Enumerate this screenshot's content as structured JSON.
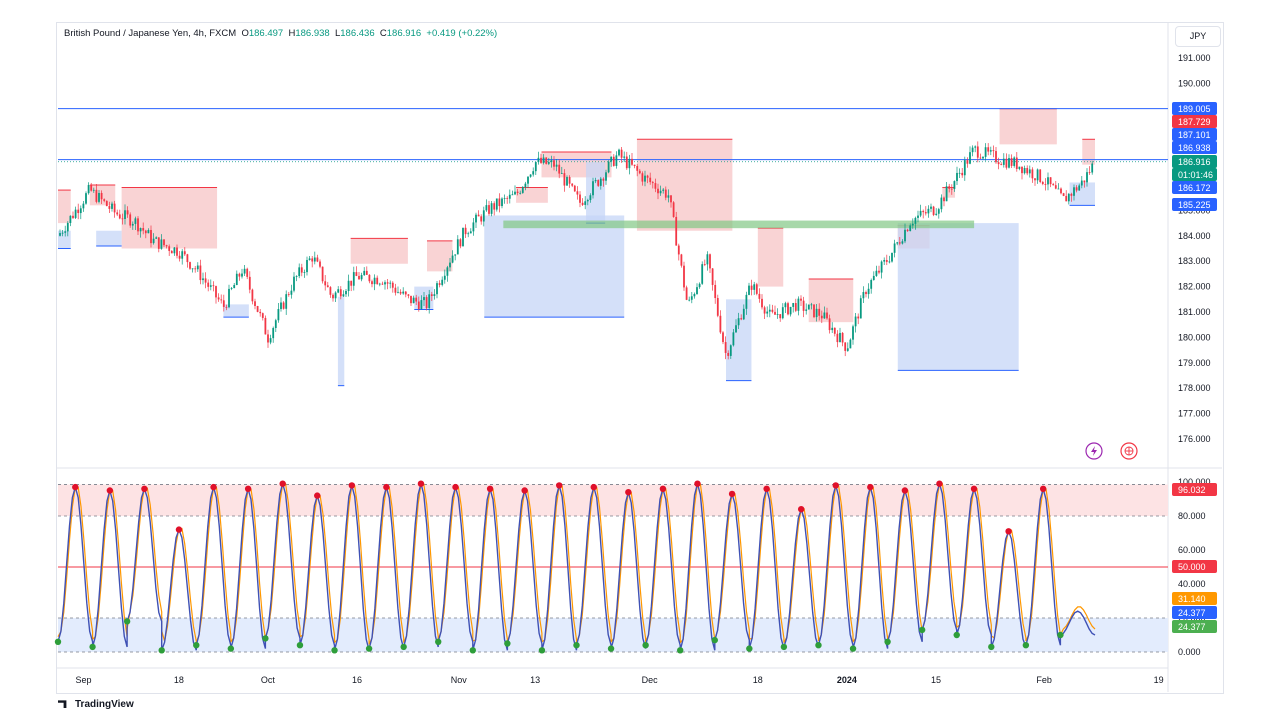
{
  "header": {
    "symbol": "British Pound / Japanese Yen, 4h, FXCM",
    "open_label": "O",
    "open": "186.497",
    "high_label": "H",
    "high": "186.938",
    "low_label": "L",
    "low": "186.436",
    "close_label": "C",
    "close": "186.916",
    "change": "+0.419 (+0.22%)"
  },
  "currency_button": "JPY",
  "branding": "TradingView",
  "colors": {
    "up": "#089981",
    "down": "#f23645",
    "blue": "#2962ff",
    "supply_zone": "#f7c4c6",
    "demand_zone": "#c5d6f7",
    "k_line": "#3f51b5",
    "d_line": "#ff9800"
  },
  "chart_data": [
    {
      "type": "candlestick",
      "title": "British Pound / Japanese Yen, 4h, FXCM",
      "ylim": [
        175.5,
        191.6
      ],
      "y_ticks": [
        "191.000",
        "190.000",
        "189.000",
        "188.000",
        "187.000",
        "186.000",
        "185.000",
        "184.000",
        "183.000",
        "182.000",
        "181.000",
        "180.000",
        "179.000",
        "178.000",
        "177.000",
        "176.000"
      ],
      "x_ticks": [
        "Sep",
        "18",
        "Oct",
        "16",
        "Nov",
        "13",
        "Dec",
        "18",
        "2024",
        "15",
        "Feb",
        "19"
      ],
      "close_path": [
        [
          "Aug 30",
          184.0
        ],
        [
          "Sep 4",
          185.8
        ],
        [
          "Sep 8",
          184.9
        ],
        [
          "Sep 11",
          184.6
        ],
        [
          "Sep 14",
          183.8
        ],
        [
          "Sep 18",
          183.4
        ],
        [
          "Sep 21",
          182.6
        ],
        [
          "Sep 25",
          181.2
        ],
        [
          "Sep 28",
          182.7
        ],
        [
          "Oct 2",
          180.0
        ],
        [
          "Oct 6",
          182.2
        ],
        [
          "Oct 9",
          183.2
        ],
        [
          "Oct 12",
          181.6
        ],
        [
          "Oct 16",
          182.4
        ],
        [
          "Oct 20",
          182.3
        ],
        [
          "Oct 24",
          181.5
        ],
        [
          "Oct 27",
          181.3
        ],
        [
          "Oct 30",
          182.8
        ],
        [
          "Nov 2",
          184.2
        ],
        [
          "Nov 6",
          185.1
        ],
        [
          "Nov 10",
          185.6
        ],
        [
          "Nov 13",
          186.9
        ],
        [
          "Nov 16",
          186.8
        ],
        [
          "Nov 20",
          185.3
        ],
        [
          "Nov 23",
          186.2
        ],
        [
          "Nov 26",
          187.2
        ],
        [
          "Nov 30",
          186.3
        ],
        [
          "Dec 4",
          185.6
        ],
        [
          "Dec 7",
          181.2
        ],
        [
          "Dec 10",
          183.1
        ],
        [
          "Dec 13",
          179.3
        ],
        [
          "Dec 17",
          182.1
        ],
        [
          "Dec 20",
          180.8
        ],
        [
          "Dec 24",
          181.3
        ],
        [
          "Dec 28",
          180.9
        ],
        [
          "Jan 1",
          179.6
        ],
        [
          "Jan 4",
          181.9
        ],
        [
          "Jan 8",
          183.3
        ],
        [
          "Jan 11",
          184.6
        ],
        [
          "Jan 15",
          185.1
        ],
        [
          "Jan 18",
          186.2
        ],
        [
          "Jan 21",
          187.4
        ],
        [
          "Jan 24",
          187.1
        ],
        [
          "Jan 28",
          186.8
        ],
        [
          "Feb 1",
          186.2
        ],
        [
          "Feb 4",
          185.4
        ],
        [
          "Feb 7",
          186.1
        ],
        [
          "Feb 9",
          186.916
        ]
      ],
      "price_labels": [
        {
          "value": "189.005",
          "color": "#2962ff"
        },
        {
          "value": "187.729",
          "color": "#f23645"
        },
        {
          "value": "187.101",
          "color": "#2962ff"
        },
        {
          "value": "186.938",
          "color": "#2962ff"
        },
        {
          "value": "186.916",
          "color": "#089981"
        },
        {
          "value": "186.172",
          "color": "#2962ff"
        },
        {
          "value": "185.225",
          "color": "#2962ff"
        }
      ],
      "countdown": "01:01:46",
      "horizontal_lines": [
        189.005,
        187.0
      ],
      "supply_zones": [
        {
          "from": "Aug 30",
          "to": "Sep 1",
          "top": 185.8,
          "bottom": 184.5
        },
        {
          "from": "Sep 4",
          "to": "Sep 8",
          "top": 186.0,
          "bottom": 185.2
        },
        {
          "from": "Sep 9",
          "to": "Sep 24",
          "top": 185.9,
          "bottom": 183.5
        },
        {
          "from": "Oct 15",
          "to": "Oct 24",
          "top": 183.9,
          "bottom": 182.9
        },
        {
          "from": "Oct 27",
          "to": "Oct 31",
          "top": 183.8,
          "bottom": 182.6
        },
        {
          "from": "Nov 10",
          "to": "Nov 15",
          "top": 185.9,
          "bottom": 185.3
        },
        {
          "from": "Nov 14",
          "to": "Nov 25",
          "top": 187.3,
          "bottom": 186.3
        },
        {
          "from": "Nov 29",
          "to": "Dec 14",
          "top": 187.8,
          "bottom": 184.2
        },
        {
          "from": "Dec 18",
          "to": "Dec 22",
          "top": 184.3,
          "bottom": 182.0
        },
        {
          "from": "Dec 26",
          "to": "Jan 2",
          "top": 182.3,
          "bottom": 180.6
        },
        {
          "from": "Jan 9",
          "to": "Jan 14",
          "top": 184.4,
          "bottom": 183.5
        },
        {
          "from": "Jan 16",
          "to": "Jan 18",
          "top": 185.9,
          "bottom": 185.5
        },
        {
          "from": "Jan 25",
          "to": "Feb 3",
          "top": 189.0,
          "bottom": 187.6
        },
        {
          "from": "Feb 7",
          "to": "Feb 9",
          "top": 187.8,
          "bottom": 186.8
        }
      ],
      "demand_zones": [
        {
          "from": "Aug 30",
          "to": "Sep 1",
          "top": 184.2,
          "bottom": 183.5
        },
        {
          "from": "Sep 5",
          "to": "Sep 9",
          "top": 184.2,
          "bottom": 183.6
        },
        {
          "from": "Sep 25",
          "to": "Sep 29",
          "top": 181.3,
          "bottom": 180.8
        },
        {
          "from": "Oct 13",
          "to": "Oct 14",
          "top": 181.6,
          "bottom": 178.1
        },
        {
          "from": "Oct 25",
          "to": "Oct 28",
          "top": 182.0,
          "bottom": 181.1
        },
        {
          "from": "Nov 5",
          "to": "Nov 27",
          "top": 184.8,
          "bottom": 180.8
        },
        {
          "from": "Nov 21",
          "to": "Nov 24",
          "top": 186.9,
          "bottom": 184.5
        },
        {
          "from": "Dec 13",
          "to": "Dec 17",
          "top": 181.5,
          "bottom": 178.3
        },
        {
          "from": "Jan 9",
          "to": "Jan 28",
          "top": 184.5,
          "bottom": 178.7
        },
        {
          "from": "Feb 5",
          "to": "Feb 9",
          "top": 186.1,
          "bottom": 185.2
        }
      ],
      "highlight_band": {
        "from": "Nov 8",
        "to": "Jan 21",
        "top": 184.6,
        "bottom": 184.3
      }
    },
    {
      "type": "line",
      "title": "",
      "ylim": [
        0,
        100
      ],
      "y_ticks": [
        "100.000",
        "80.000",
        "60.000",
        "40.000",
        "20.000",
        "0.000"
      ],
      "reference_lines": [
        {
          "value": 98.5,
          "style": "dashed"
        },
        {
          "value": 80,
          "style": "dashed"
        },
        {
          "value": 50,
          "style": "solid",
          "color": "#f23645"
        },
        {
          "value": 20,
          "style": "dashed"
        },
        {
          "value": 0,
          "style": "dashed"
        }
      ],
      "badges": [
        {
          "value": "96.032",
          "color": "#f23645"
        },
        {
          "value": "50.000",
          "color": "#f23645"
        },
        {
          "value": "31.140",
          "color": "#ff9800"
        },
        {
          "value": "24.377",
          "color": "#2962ff"
        },
        {
          "value": "24.377",
          "color": "#4caf50"
        }
      ],
      "oscillator_cycles": [
        {
          "high": 97,
          "low": 6
        },
        {
          "high": 95,
          "low": 3
        },
        {
          "high": 96,
          "low": 18
        },
        {
          "high": 72,
          "low": 1
        },
        {
          "high": 97,
          "low": 4
        },
        {
          "high": 96,
          "low": 2
        },
        {
          "high": 99,
          "low": 8
        },
        {
          "high": 92,
          "low": 4
        },
        {
          "high": 98,
          "low": 1
        },
        {
          "high": 97,
          "low": 2
        },
        {
          "high": 99,
          "low": 3
        },
        {
          "high": 97,
          "low": 6
        },
        {
          "high": 96,
          "low": 1
        },
        {
          "high": 95,
          "low": 5
        },
        {
          "high": 98,
          "low": 1
        },
        {
          "high": 97,
          "low": 4
        },
        {
          "high": 94,
          "low": 2
        },
        {
          "high": 96,
          "low": 4
        },
        {
          "high": 99,
          "low": 1
        },
        {
          "high": 93,
          "low": 7
        },
        {
          "high": 96,
          "low": 2
        },
        {
          "high": 84,
          "low": 3
        },
        {
          "high": 98,
          "low": 4
        },
        {
          "high": 97,
          "low": 2
        },
        {
          "high": 95,
          "low": 6
        },
        {
          "high": 99,
          "low": 13
        },
        {
          "high": 96,
          "low": 10
        },
        {
          "high": 71,
          "low": 3
        },
        {
          "high": 96,
          "low": 4
        },
        {
          "high": 24,
          "low": 10
        }
      ]
    }
  ]
}
